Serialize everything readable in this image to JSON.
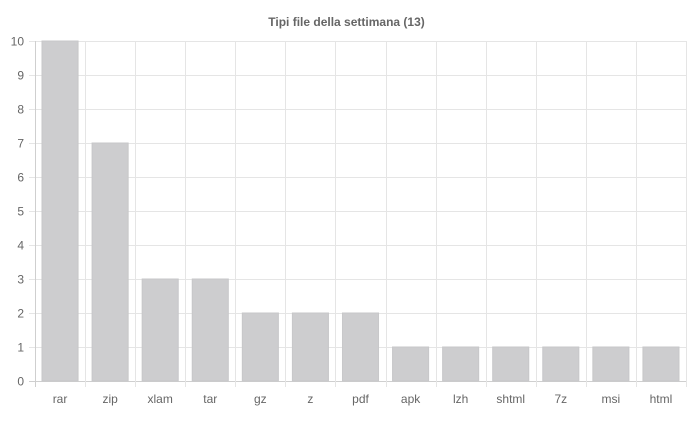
{
  "chart_data": {
    "type": "bar",
    "title": "Tipi file della settimana (13)",
    "categories": [
      "rar",
      "zip",
      "xlam",
      "tar",
      "gz",
      "z",
      "pdf",
      "apk",
      "lzh",
      "shtml",
      "7z",
      "msi",
      "html"
    ],
    "values": [
      10,
      7,
      3,
      3,
      2,
      2,
      2,
      1,
      1,
      1,
      1,
      1,
      1
    ],
    "xlabel": "",
    "ylabel": "",
    "ylim": [
      0,
      10
    ],
    "yticks": [
      "0",
      "1",
      "2",
      "3",
      "4",
      "5",
      "6",
      "7",
      "8",
      "9",
      "10"
    ],
    "grid": true,
    "legend": "none",
    "colors": {
      "bar": "#cdcdcf",
      "grid": "#e5e5e5",
      "text": "#666666"
    }
  }
}
